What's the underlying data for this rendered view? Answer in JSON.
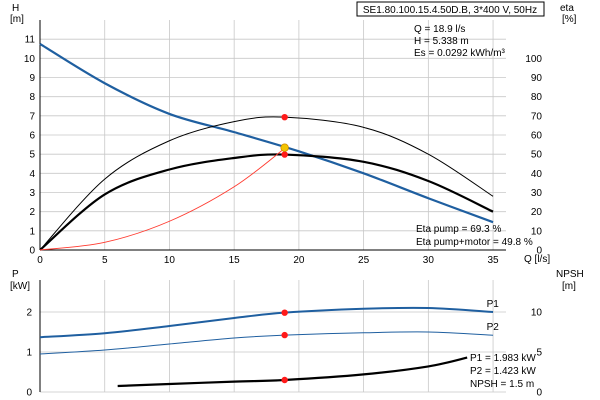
{
  "header": {
    "model": "SE1.80.100.15.4.50D.B, 3*400 V, 50Hz"
  },
  "colors": {
    "head": "#1f5fa0",
    "eff": "#000000",
    "system": "#ff3b30",
    "marker": "#ff1a1a",
    "marker_op": "#f2c400",
    "power": "#1f5fa0"
  },
  "chart_data": [
    {
      "type": "line",
      "axes": {
        "x": {
          "label": "Q [l/s]",
          "range": [
            0,
            36
          ],
          "ticks": [
            0,
            5,
            10,
            15,
            20,
            25,
            30,
            35
          ]
        },
        "y_left": {
          "label_top": "H",
          "label_unit": "[m]",
          "range": [
            0,
            12
          ],
          "ticks": [
            0,
            1,
            2,
            3,
            4,
            5,
            6,
            7,
            8,
            9,
            10,
            11
          ]
        },
        "y_right": {
          "label_top": "eta",
          "label_unit": "[%]",
          "range": [
            0,
            120
          ],
          "ticks": [
            0,
            10,
            20,
            30,
            40,
            50,
            60,
            70,
            80,
            90,
            100
          ]
        }
      },
      "grid": true,
      "series": [
        {
          "role": "head",
          "axis": "left",
          "x": [
            0,
            5,
            10,
            15,
            20,
            25,
            30,
            35
          ],
          "y": [
            10.75,
            8.7,
            7.1,
            6.15,
            5.15,
            4.0,
            2.7,
            1.45
          ]
        },
        {
          "role": "eta-pump",
          "axis": "right",
          "x": [
            0,
            5,
            10,
            15,
            18.9,
            25,
            30,
            35
          ],
          "y": [
            0,
            37,
            57,
            67,
            69.3,
            64,
            50,
            28
          ]
        },
        {
          "role": "eta-pump-motor",
          "axis": "right",
          "x": [
            0,
            5,
            10,
            15,
            18.9,
            25,
            30,
            35
          ],
          "y": [
            0,
            29,
            42,
            48,
            49.8,
            46,
            36,
            20
          ]
        },
        {
          "role": "system-curve",
          "axis": "left",
          "x": [
            0,
            5,
            10,
            15,
            18.9
          ],
          "y": [
            0,
            0.4,
            1.5,
            3.3,
            5.3
          ]
        }
      ],
      "operating_point": {
        "x": 18.9,
        "y_head": 5.338,
        "y_eta_pump": 69.3,
        "y_eta_pm": 49.8
      },
      "annotations": {
        "top": [
          "Q = 18.9 l/s",
          "H = 5.338 m",
          "Es = 0.0292 kWh/m³"
        ],
        "bottom": [
          "Eta pump = 69.3 %",
          "Eta pump+motor = 49.8 %"
        ]
      }
    },
    {
      "type": "line",
      "axes": {
        "x": {
          "range": [
            0,
            36
          ]
        },
        "y_left": {
          "label_top": "P",
          "label_unit": "[kW]",
          "range": [
            0,
            2.8
          ],
          "ticks": [
            0,
            1,
            2
          ]
        },
        "y_right": {
          "label_top": "NPSH",
          "label_unit": "[m]",
          "range": [
            0,
            14
          ],
          "ticks": [
            0,
            5,
            10
          ]
        }
      },
      "grid": true,
      "series": [
        {
          "name": "P1",
          "axis": "left",
          "x": [
            0,
            5,
            10,
            15,
            18.9,
            25,
            30,
            35
          ],
          "y": [
            1.37,
            1.47,
            1.65,
            1.85,
            1.983,
            2.08,
            2.1,
            2.0
          ]
        },
        {
          "name": "P2",
          "axis": "left",
          "x": [
            0,
            5,
            10,
            15,
            18.9,
            25,
            30,
            35
          ],
          "y": [
            0.95,
            1.05,
            1.2,
            1.35,
            1.423,
            1.48,
            1.5,
            1.42
          ]
        },
        {
          "role": "npsh",
          "axis": "right",
          "x": [
            6,
            10,
            15,
            18.9,
            25,
            30,
            33
          ],
          "y": [
            0.75,
            1.0,
            1.3,
            1.5,
            2.2,
            3.2,
            4.3
          ]
        }
      ],
      "operating_point": {
        "x": 18.9,
        "y_p1": 1.983,
        "y_p2": 1.423,
        "y_npsh": 1.5
      },
      "annotations": {
        "bottom": [
          "P1 = 1.983 kW",
          "P2 = 1.423 kW",
          "NPSH = 1.5 m"
        ]
      }
    }
  ]
}
